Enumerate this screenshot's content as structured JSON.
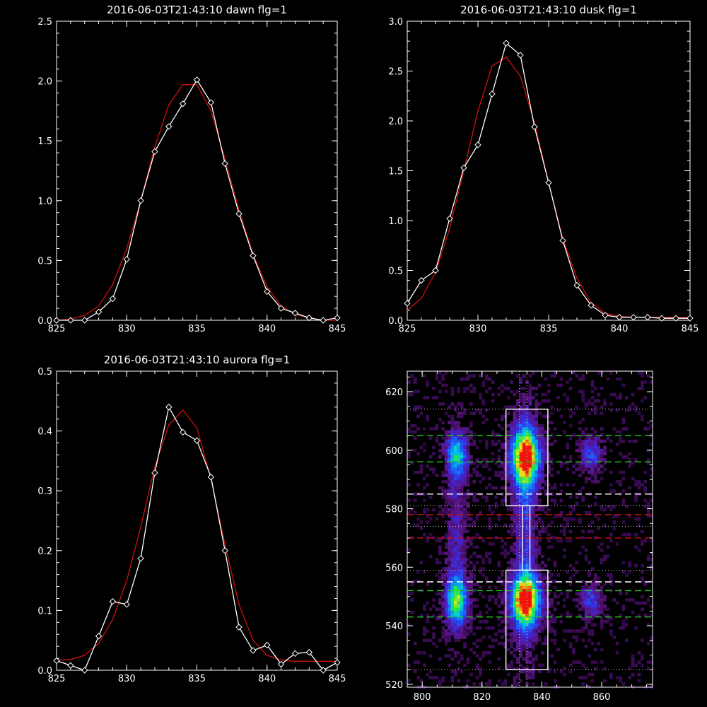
{
  "chart_data": [
    {
      "type": "line",
      "title": "2016-06-03T21:43:10 dawn flg=1",
      "xlim": [
        825,
        845
      ],
      "ylim": [
        0,
        2.5
      ],
      "xticks": [
        "825",
        "830",
        "835",
        "840",
        "845"
      ],
      "yticks": [
        "0.0",
        "0.5",
        "1.0",
        "1.5",
        "2.0",
        "2.5"
      ],
      "series": [
        {
          "color": "#ffffff",
          "marker": "diamond",
          "x": [
            825,
            826,
            827,
            828,
            829,
            830,
            831,
            832,
            833,
            834,
            835,
            836,
            837,
            838,
            839,
            840,
            841,
            842,
            843,
            844,
            845
          ],
          "y": [
            0.0,
            0.0,
            0.0,
            0.07,
            0.18,
            0.51,
            1.0,
            1.41,
            1.62,
            1.81,
            2.01,
            1.82,
            1.31,
            0.89,
            0.54,
            0.24,
            0.1,
            0.06,
            0.02,
            0.0,
            0.02
          ]
        },
        {
          "color": "#d01010",
          "marker": "none",
          "x": [
            825,
            826,
            827,
            828,
            829,
            830,
            831,
            832,
            833,
            834,
            835,
            836,
            837,
            838,
            839,
            840,
            841,
            842,
            843,
            844,
            845
          ],
          "y": [
            0.0,
            0.01,
            0.04,
            0.12,
            0.3,
            0.6,
            1.0,
            1.45,
            1.8,
            1.97,
            1.97,
            1.75,
            1.35,
            0.92,
            0.55,
            0.28,
            0.12,
            0.05,
            0.02,
            0.0,
            0.0
          ]
        }
      ]
    },
    {
      "type": "line",
      "title": "2016-06-03T21:43:10 dusk flg=1",
      "xlim": [
        825,
        845
      ],
      "ylim": [
        0,
        3.0
      ],
      "xticks": [
        "825",
        "830",
        "835",
        "840",
        "845"
      ],
      "yticks": [
        "0.0",
        "0.5",
        "1.0",
        "1.5",
        "2.0",
        "2.5",
        "3.0"
      ],
      "series": [
        {
          "color": "#ffffff",
          "marker": "diamond",
          "x": [
            825,
            826,
            827,
            828,
            829,
            830,
            831,
            832,
            833,
            834,
            835,
            836,
            837,
            838,
            839,
            840,
            841,
            842,
            843,
            844,
            845
          ],
          "y": [
            0.17,
            0.4,
            0.5,
            1.02,
            1.53,
            1.76,
            2.27,
            2.78,
            2.66,
            1.94,
            1.38,
            0.8,
            0.35,
            0.15,
            0.05,
            0.03,
            0.03,
            0.03,
            0.02,
            0.02,
            0.02
          ]
        },
        {
          "color": "#d01010",
          "marker": "none",
          "x": [
            825,
            826,
            827,
            828,
            829,
            830,
            831,
            832,
            833,
            834,
            835,
            836,
            837,
            838,
            839,
            840,
            841,
            842,
            843,
            844,
            845
          ],
          "y": [
            0.1,
            0.22,
            0.48,
            0.92,
            1.5,
            2.1,
            2.55,
            2.64,
            2.45,
            1.98,
            1.38,
            0.82,
            0.42,
            0.18,
            0.07,
            0.04,
            0.03,
            0.03,
            0.03,
            0.03,
            0.03
          ]
        }
      ]
    },
    {
      "type": "line",
      "title": "2016-06-03T21:43:10 aurora flg=1",
      "xlim": [
        825,
        845
      ],
      "ylim": [
        0,
        0.5
      ],
      "xticks": [
        "825",
        "830",
        "835",
        "840",
        "845"
      ],
      "yticks": [
        "0.0",
        "0.1",
        "0.2",
        "0.3",
        "0.4",
        "0.5"
      ],
      "series": [
        {
          "color": "#ffffff",
          "marker": "diamond",
          "x": [
            825,
            826,
            827,
            828,
            829,
            830,
            831,
            832,
            833,
            834,
            835,
            836,
            837,
            838,
            839,
            840,
            841,
            842,
            843,
            844,
            845
          ],
          "y": [
            0.016,
            0.008,
            0.0,
            0.057,
            0.115,
            0.11,
            0.187,
            0.33,
            0.44,
            0.398,
            0.384,
            0.323,
            0.2,
            0.072,
            0.033,
            0.042,
            0.01,
            0.028,
            0.03,
            0.0,
            0.013
          ]
        },
        {
          "color": "#d01010",
          "marker": "none",
          "x": [
            825,
            826,
            827,
            828,
            829,
            830,
            831,
            832,
            833,
            834,
            835,
            836,
            837,
            838,
            839,
            840,
            841,
            842,
            843,
            844,
            845
          ],
          "y": [
            0.017,
            0.018,
            0.025,
            0.045,
            0.085,
            0.15,
            0.24,
            0.34,
            0.41,
            0.435,
            0.405,
            0.32,
            0.21,
            0.11,
            0.05,
            0.025,
            0.017,
            0.015,
            0.015,
            0.015,
            0.015
          ]
        }
      ]
    },
    {
      "type": "heatmap",
      "xlim": [
        795,
        877
      ],
      "ylim": [
        519,
        627
      ],
      "xticks": [
        800,
        820,
        840,
        860
      ],
      "yticks": [
        520,
        540,
        560,
        580,
        600,
        620
      ],
      "blobs": [
        {
          "x": 811,
          "y": 599,
          "sx": 2.5,
          "sy": 5,
          "amp": 0.55
        },
        {
          "x": 811,
          "y": 549,
          "sx": 2.5,
          "sy": 6,
          "amp": 0.7
        },
        {
          "x": 811,
          "y": 575,
          "sx": 2.5,
          "sy": 20,
          "amp": 0.22
        },
        {
          "x": 834,
          "y": 598,
          "sx": 3.5,
          "sy": 7,
          "amp": 0.95
        },
        {
          "x": 834,
          "y": 549,
          "sx": 3.5,
          "sy": 6,
          "amp": 1.0
        },
        {
          "x": 834,
          "y": 573,
          "sx": 2.5,
          "sy": 30,
          "amp": 0.3
        },
        {
          "x": 856,
          "y": 599,
          "sx": 2.5,
          "sy": 4,
          "amp": 0.35
        },
        {
          "x": 856,
          "y": 549,
          "sx": 2.5,
          "sy": 4,
          "amp": 0.35
        }
      ],
      "boxes": [
        {
          "x0": 828,
          "x1": 842,
          "y0": 581,
          "y1": 614
        },
        {
          "x0": 828,
          "x1": 842,
          "y0": 525,
          "y1": 559
        },
        {
          "x0": 833.5,
          "x1": 836,
          "y0": 559,
          "y1": 581
        }
      ],
      "dotted_h": [
        614,
        581,
        574,
        559,
        525
      ],
      "dotted_v": [
        832.5,
        835
      ],
      "dashed_lines": [
        {
          "y": 605,
          "color": "#20d020"
        },
        {
          "y": 596,
          "color": "#20d020"
        },
        {
          "y": 585,
          "color": "#ffffff"
        },
        {
          "y": 578,
          "color": "#d01010"
        },
        {
          "y": 570,
          "color": "#d01010"
        },
        {
          "y": 555,
          "color": "#ffffff"
        },
        {
          "y": 552,
          "color": "#20d020"
        },
        {
          "y": 543,
          "color": "#20d020"
        }
      ]
    }
  ]
}
